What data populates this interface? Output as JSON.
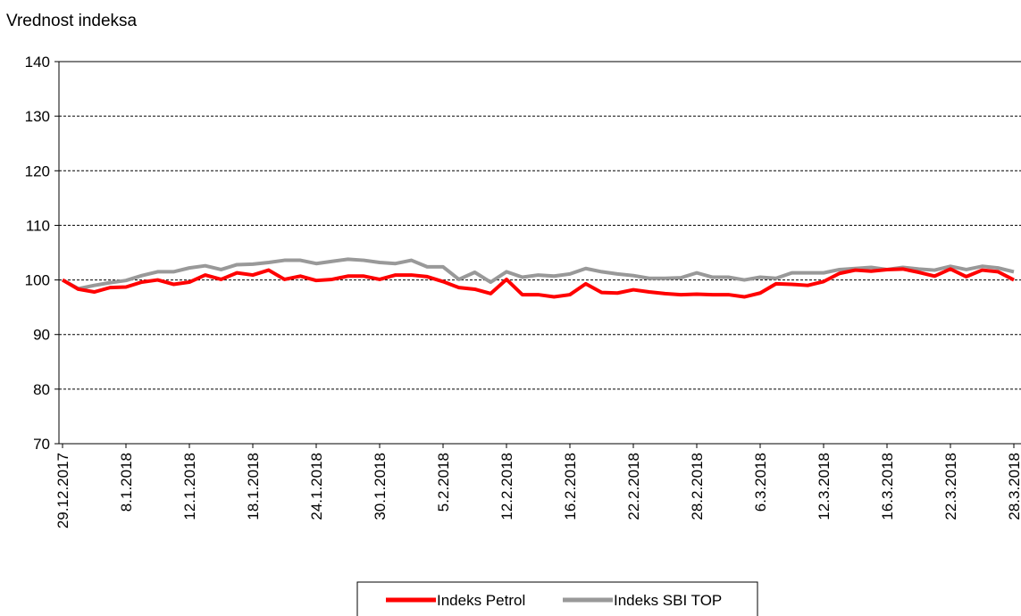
{
  "chart_data": {
    "type": "line",
    "y_axis_label": "Vrednost indeksa",
    "categories": [
      "29.12.2017",
      null,
      null,
      null,
      "8.1.2018",
      null,
      null,
      null,
      "12.1.2018",
      null,
      null,
      null,
      "18.1.2018",
      null,
      null,
      null,
      "24.1.2018",
      null,
      null,
      null,
      "30.1.2018",
      null,
      null,
      null,
      "5.2.2018",
      null,
      null,
      null,
      "12.2.2018",
      null,
      null,
      null,
      "16.2.2018",
      null,
      null,
      null,
      "22.2.2018",
      null,
      null,
      null,
      "28.2.2018",
      null,
      null,
      null,
      "6.3.2018",
      null,
      null,
      null,
      "12.3.2018",
      null,
      null,
      null,
      "16.3.2018",
      null,
      null,
      null,
      "22.3.2018",
      null,
      null,
      null,
      "28.3.2018"
    ],
    "series": [
      {
        "name": "Indeks Petrol",
        "color": "#ff0000",
        "values": [
          100,
          98.3,
          97.8,
          98.6,
          98.7,
          99.6,
          100,
          99.2,
          99.6,
          100.9,
          100.1,
          101.3,
          100.9,
          101.8,
          100.1,
          100.7,
          99.9,
          100.1,
          100.7,
          100.7,
          100.1,
          100.9,
          100.9,
          100.6,
          99.7,
          98.6,
          98.3,
          97.5,
          100.1,
          97.3,
          97.3,
          96.9,
          97.3,
          99.3,
          97.7,
          97.6,
          98.2,
          97.8,
          97.5,
          97.3,
          97.4,
          97.3,
          97.3,
          96.9,
          97.6,
          99.3,
          99.2,
          99.0,
          99.7,
          101.2,
          101.8,
          101.6,
          101.9,
          102,
          101.4,
          100.7,
          102,
          100.6,
          101.8,
          101.5,
          100
        ]
      },
      {
        "name": "Indeks SBI TOP",
        "color": "#999999",
        "values": [
          100,
          98.4,
          99,
          99.5,
          99.9,
          100.8,
          101.5,
          101.5,
          102.2,
          102.6,
          101.9,
          102.8,
          102.9,
          103.2,
          103.6,
          103.6,
          103,
          103.4,
          103.8,
          103.6,
          103.2,
          103,
          103.6,
          102.4,
          102.4,
          100.1,
          101.4,
          99.6,
          101.5,
          100.5,
          100.9,
          100.7,
          101.1,
          102.1,
          101.5,
          101.1,
          100.8,
          100.3,
          100.3,
          100.4,
          101.3,
          100.5,
          100.5,
          100,
          100.5,
          100.3,
          101.3,
          101.3,
          101.3,
          101.9,
          102.1,
          102.3,
          101.9,
          102.3,
          102,
          101.8,
          102.5,
          101.9,
          102.5,
          102.2,
          101.5
        ]
      }
    ],
    "ylim": [
      70,
      140
    ],
    "yticks": [
      70,
      80,
      90,
      100,
      110,
      120,
      130,
      140
    ],
    "grid": true,
    "legend": "bottom"
  }
}
